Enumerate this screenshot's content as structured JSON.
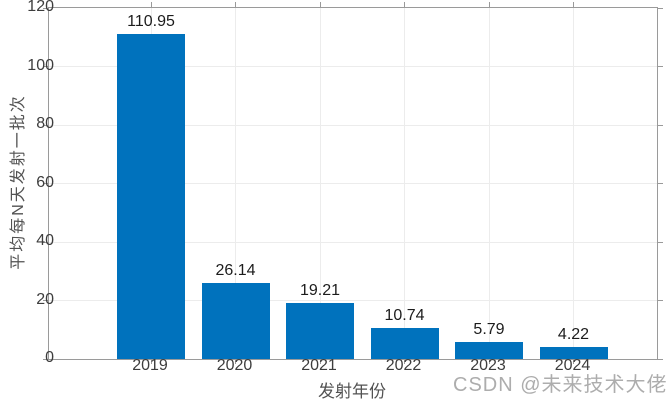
{
  "watermark": {
    "text": "CSDN @未来技术大佬"
  },
  "colors": {
    "bar": "#0072BD",
    "grid": "#ececec",
    "axis": "#9a9a9a",
    "tick_label": "#3d3d3d",
    "value_label": "#1c1c1c",
    "axis_label": "#525252",
    "watermark": "#adadad",
    "background": "#ffffff"
  },
  "chart_data": {
    "type": "bar",
    "categories": [
      "2019",
      "2020",
      "2021",
      "2022",
      "2023",
      "2024"
    ],
    "values": [
      110.95,
      26.14,
      19.21,
      10.74,
      5.79,
      4.22
    ],
    "value_labels": [
      "110.95",
      "26.14",
      "19.21",
      "10.74",
      "5.79",
      "4.22"
    ],
    "title": "",
    "xlabel": "发射年份",
    "ylabel": "平均每N天发射一批次",
    "ylim": [
      0,
      120
    ],
    "yticks": [
      0,
      20,
      40,
      60,
      80,
      100,
      120
    ],
    "grid": true,
    "legend": null,
    "bar_color": "#0072BD"
  }
}
